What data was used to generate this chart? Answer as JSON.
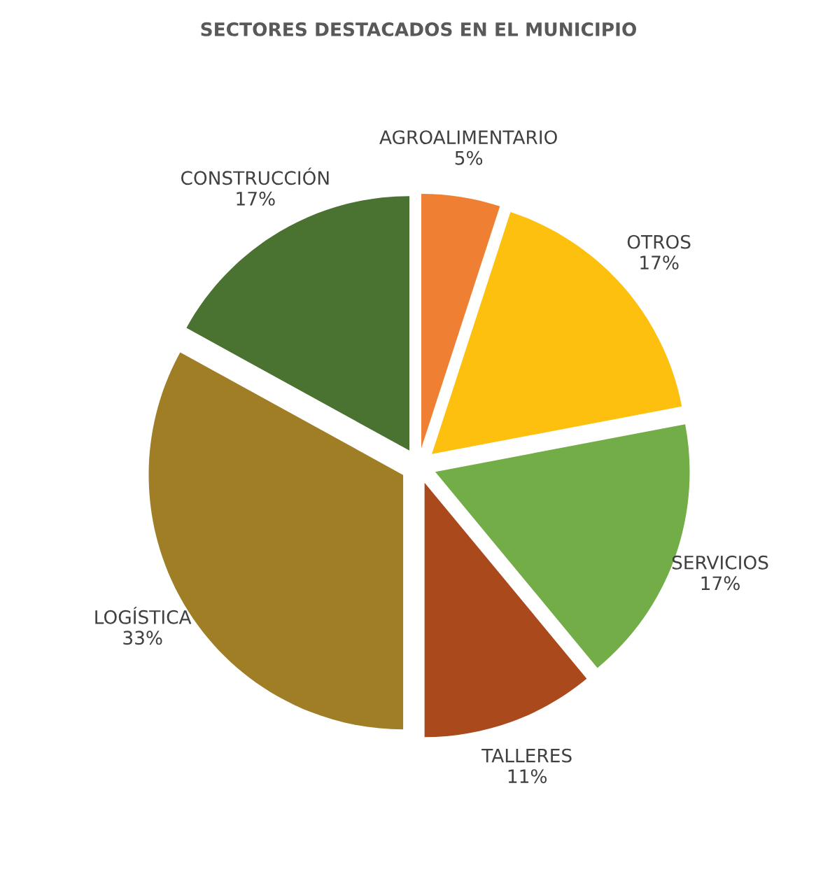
{
  "chart_data": {
    "type": "pie",
    "title": "SECTORES DESTACADOS EN EL MUNICIPIO",
    "categories": [
      "AGROALIMENTARIO",
      "OTROS",
      "SERVICIOS",
      "TALLERES",
      "LOGÍSTICA",
      "CONSTRUCCIÓN"
    ],
    "values": [
      5,
      17,
      17,
      11,
      33,
      17
    ],
    "value_labels": [
      "5%",
      "17%",
      "17%",
      "11%",
      "33%",
      "17%"
    ],
    "colors": [
      "#ef7f33",
      "#fdc00f",
      "#72ad47",
      "#aa4a1c",
      "#a07e26",
      "#4a7231"
    ],
    "legend": false
  }
}
